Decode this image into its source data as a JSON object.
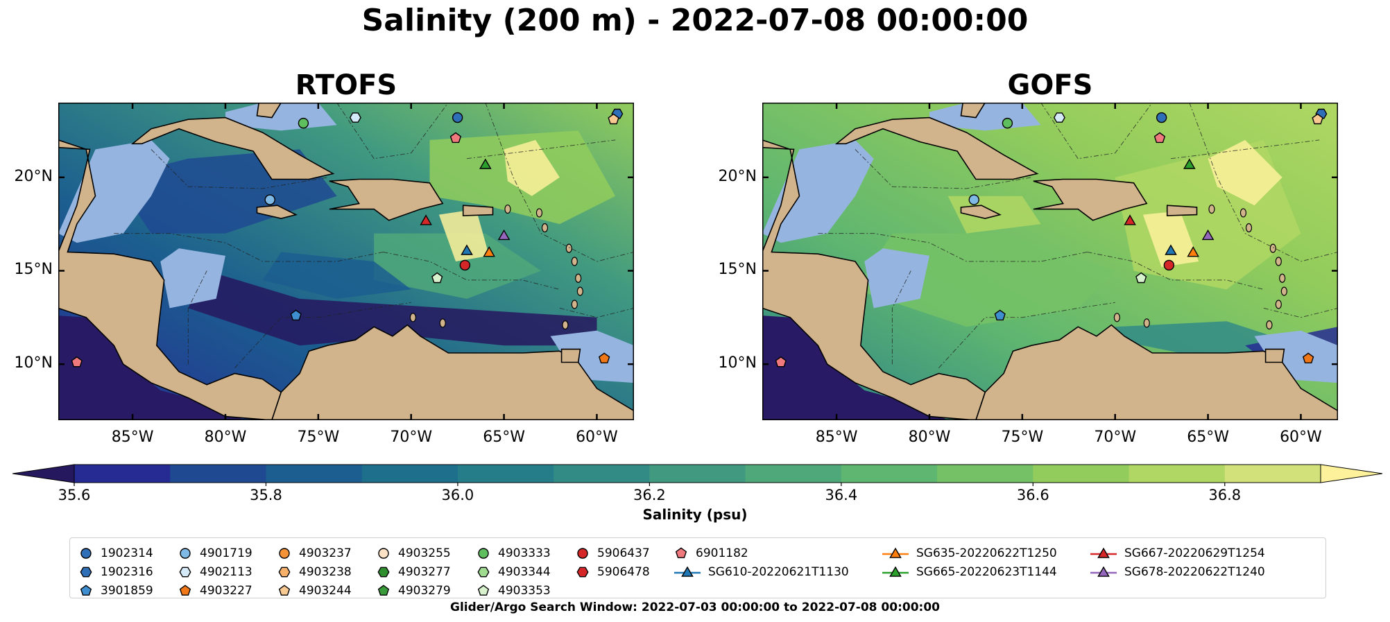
{
  "suptitle": "Salinity (200 m) - 2022-07-08 00:00:00",
  "chart_data": [
    {
      "type": "heatmap",
      "title": "RTOFS",
      "xlim": [
        -89,
        -58
      ],
      "ylim": [
        7,
        24
      ],
      "x_ticks": [
        -85,
        -80,
        -75,
        -70,
        -65,
        -60
      ],
      "x_tick_labels": [
        "85°W",
        "80°W",
        "75°W",
        "70°W",
        "65°W",
        "60°W"
      ],
      "y_ticks": [
        10,
        15,
        20
      ],
      "y_tick_labels": [
        "10°N",
        "15°N",
        "20°N"
      ],
      "field_tint": "low"
    },
    {
      "type": "heatmap",
      "title": "GOFS",
      "xlim": [
        -89,
        -58
      ],
      "ylim": [
        7,
        24
      ],
      "x_ticks": [
        -85,
        -80,
        -75,
        -70,
        -65,
        -60
      ],
      "x_tick_labels": [
        "85°W",
        "80°W",
        "75°W",
        "70°W",
        "65°W",
        "60°W"
      ],
      "y_ticks": [
        10,
        15,
        20
      ],
      "y_tick_labels": [
        "10°N",
        "15°N",
        "20°N"
      ],
      "field_tint": "high"
    }
  ],
  "colorbar": {
    "label": "Salinity (psu)",
    "vmin": 35.6,
    "vmax": 36.9,
    "levels": [
      35.6,
      35.7,
      35.8,
      35.9,
      36.0,
      36.1,
      36.2,
      36.3,
      36.4,
      36.5,
      36.6,
      36.7,
      36.8,
      36.9
    ],
    "tick_values": [
      35.6,
      35.8,
      36.0,
      36.2,
      36.4,
      36.6,
      36.8
    ],
    "tick_labels": [
      "35.6",
      "35.8",
      "36.0",
      "36.2",
      "36.4",
      "36.6",
      "36.8"
    ],
    "colors": [
      "#26185f",
      "#262b94",
      "#1f4a92",
      "#1b5e8f",
      "#1d6f8c",
      "#257d8a",
      "#338b86",
      "#419a80",
      "#4fa87a",
      "#5fb670",
      "#75c266",
      "#92cc5c",
      "#b0d763",
      "#d3e17b",
      "#fdf19b"
    ],
    "extend": "both"
  },
  "legend": {
    "items": [
      {
        "label": "1902314",
        "marker": "circle",
        "color": "#2f6fb8"
      },
      {
        "label": "1902316",
        "marker": "hexagon",
        "color": "#2f6fb8"
      },
      {
        "label": "3901859",
        "marker": "pentagon",
        "color": "#3e8ed0"
      },
      {
        "label": "4901719",
        "marker": "circle",
        "color": "#7fb9e6"
      },
      {
        "label": "4902113",
        "marker": "hexagon",
        "color": "#d5eaf8"
      },
      {
        "label": "4903227",
        "marker": "pentagon",
        "color": "#f07818"
      },
      {
        "label": "4903237",
        "marker": "circle",
        "color": "#f39237"
      },
      {
        "label": "4903238",
        "marker": "hexagon",
        "color": "#f7b06a"
      },
      {
        "label": "4903244",
        "marker": "pentagon",
        "color": "#f8c990"
      },
      {
        "label": "4903255",
        "marker": "circle",
        "color": "#fbe2c4"
      },
      {
        "label": "4903277",
        "marker": "hexagon",
        "color": "#2f8f2f"
      },
      {
        "label": "4903279",
        "marker": "pentagon",
        "color": "#3a9b3a"
      },
      {
        "label": "4903333",
        "marker": "circle",
        "color": "#5fbf5f"
      },
      {
        "label": "4903344",
        "marker": "hexagon",
        "color": "#9fdc8f"
      },
      {
        "label": "4903353",
        "marker": "pentagon",
        "color": "#d7f2cc"
      },
      {
        "label": "5906437",
        "marker": "circle",
        "color": "#d62728"
      },
      {
        "label": "5906478",
        "marker": "hexagon",
        "color": "#d62728"
      },
      {
        "label": "6901182",
        "marker": "pentagon",
        "color": "#f0797e"
      },
      {
        "label": "SG610-20220621T1130",
        "marker": "triangle-line",
        "color": "#1f77b4"
      },
      {
        "label": "SG635-20220622T1250",
        "marker": "triangle-line",
        "color": "#ff7f0e"
      },
      {
        "label": "SG665-20220623T1144",
        "marker": "triangle-line",
        "color": "#2ca02c"
      },
      {
        "label": "SG667-20220629T1254",
        "marker": "triangle-line",
        "color": "#d62728"
      },
      {
        "label": "SG678-20220622T1240",
        "marker": "triangle-line",
        "color": "#9467bd"
      }
    ]
  },
  "observations": [
    {
      "id": "1902314",
      "lon": -67.5,
      "lat": 23.2
    },
    {
      "id": "1902316",
      "lon": -58.9,
      "lat": 23.4
    },
    {
      "id": "3901859",
      "lon": -76.2,
      "lat": 12.6
    },
    {
      "id": "4901719",
      "lon": -77.6,
      "lat": 18.8
    },
    {
      "id": "4902113",
      "lon": -73.0,
      "lat": 23.2
    },
    {
      "id": "4903227",
      "lon": -59.6,
      "lat": 10.3
    },
    {
      "id": "4903244",
      "lon": -59.1,
      "lat": 23.1
    },
    {
      "id": "4903333",
      "lon": -75.8,
      "lat": 22.9
    },
    {
      "id": "4903353",
      "lon": -68.6,
      "lat": 14.6
    },
    {
      "id": "5906437",
      "lon": -67.1,
      "lat": 15.3
    },
    {
      "id": "6901182",
      "lon": -88.0,
      "lat": 10.1
    },
    {
      "id": "6901182b",
      "lon": -67.6,
      "lat": 22.1
    },
    {
      "id": "SG610-20220621T1130",
      "lon": -67.0,
      "lat": 16.1
    },
    {
      "id": "SG635-20220622T1250",
      "lon": -65.8,
      "lat": 16.0
    },
    {
      "id": "SG665-20220623T1144",
      "lon": -66.0,
      "lat": 20.7
    },
    {
      "id": "SG667-20220629T1254",
      "lon": -69.2,
      "lat": 17.7
    },
    {
      "id": "SG678-20220622T1240",
      "lon": -65.0,
      "lat": 16.9
    }
  ],
  "colors": {
    "land": "#d2b48c",
    "shelf": "#95b5e0",
    "deep_ocean": "#281a64"
  },
  "caption": "Glider/Argo Search Window: 2022-07-03 00:00:00 to 2022-07-08 00:00:00"
}
